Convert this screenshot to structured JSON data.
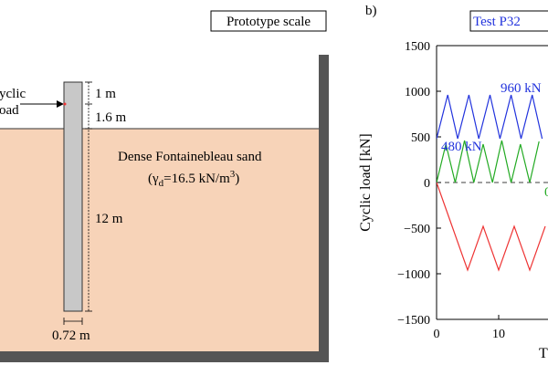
{
  "diagram": {
    "prototype_label": "Prototype scale",
    "load_label_line1": "yclic",
    "load_label_line2": "oad",
    "dim_top": "1 m",
    "dim_mid": "1.6 m",
    "dim_embed": "12 m",
    "dim_width": "0.72 m",
    "sand_line1": "Dense Fontainebleau sand",
    "sand_gamma": "(γ",
    "sand_gamma_sub": "d",
    "sand_gamma_val": "=16.5 kN/m",
    "sand_gamma_sup": "3",
    "sand_close": ")",
    "colors": {
      "sand": "#f7d3b8",
      "pile": "#c8c8c8",
      "wall": "#555555"
    }
  },
  "panel_b": {
    "label": "b)",
    "test_label": "Test P32",
    "annotation_960": "960 kN",
    "annotation_480": "480 kN",
    "annotation_cut": "0",
    "colors": {
      "blue": "#2233dd",
      "green": "#22aa22",
      "red": "#ee3333"
    }
  },
  "chart_data": {
    "type": "line",
    "title": "",
    "xlabel": "T",
    "ylabel": "Cyclic load [kN]",
    "xlim": [
      0,
      17.5
    ],
    "ylim": [
      -1500,
      1500
    ],
    "x_ticks": [
      0,
      10
    ],
    "y_ticks": [
      1500,
      1000,
      500,
      0,
      -500,
      -1000,
      -1500
    ],
    "y_tick_labels": [
      "1500",
      "1000",
      "500",
      "0",
      "−500",
      "−1000",
      "−1500"
    ],
    "x_tick_labels": [
      "0",
      "10"
    ],
    "zero_line": "dashed",
    "series": [
      {
        "color": "#2233dd",
        "x": [
          0,
          1.8,
          3.4,
          5.2,
          6.8,
          8.6,
          10.2,
          12.0,
          13.6,
          15.4,
          17.0
        ],
        "y": [
          480,
          960,
          480,
          960,
          480,
          960,
          480,
          960,
          480,
          960,
          480
        ]
      },
      {
        "color": "#22aa22",
        "x": [
          0,
          1.5,
          3.0,
          4.5,
          6.0,
          7.5,
          9.0,
          10.5,
          12.0,
          13.5,
          15.0,
          16.5
        ],
        "y": [
          0,
          420,
          0,
          460,
          0,
          420,
          0,
          460,
          0,
          420,
          0,
          450
        ]
      },
      {
        "color": "#ee3333",
        "x": [
          0,
          2.5,
          5.0,
          7.5,
          10.0,
          12.5,
          15.0,
          17.5
        ],
        "y": [
          0,
          -480,
          -960,
          -480,
          -960,
          -480,
          -960,
          -480
        ]
      }
    ]
  }
}
